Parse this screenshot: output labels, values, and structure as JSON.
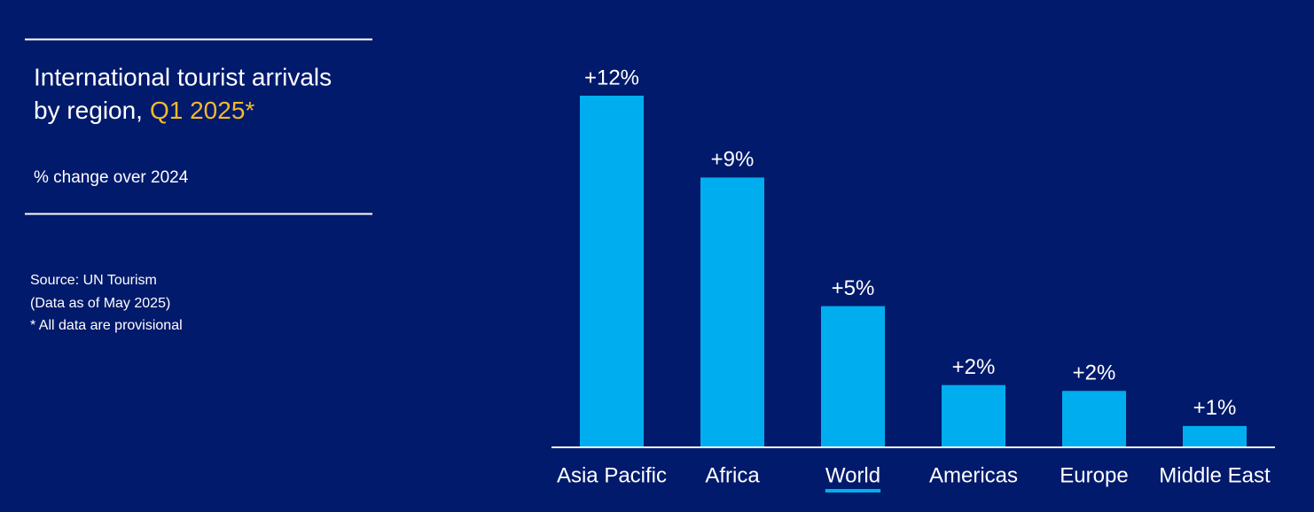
{
  "chart_data": {
    "type": "bar",
    "title": [
      "International tourist arrivals",
      "by region,"
    ],
    "title_highlight": "Q1 2025*",
    "subtitle": "% change over 2024",
    "notes": [
      "Source: UN Tourism",
      "(Data as of May 2025)",
      "* All data are provisional"
    ],
    "categories": [
      "Asia Pacific",
      "Africa",
      "World",
      "Americas",
      "Europe",
      "Middle East"
    ],
    "values": [
      12,
      9.2,
      4.8,
      2.1,
      1.9,
      0.7
    ],
    "value_labels": [
      "+12%",
      "+9%",
      "+5%",
      "+2%",
      "+2%",
      "+1%"
    ],
    "color": "#00aeef",
    "highlight": "World"
  }
}
